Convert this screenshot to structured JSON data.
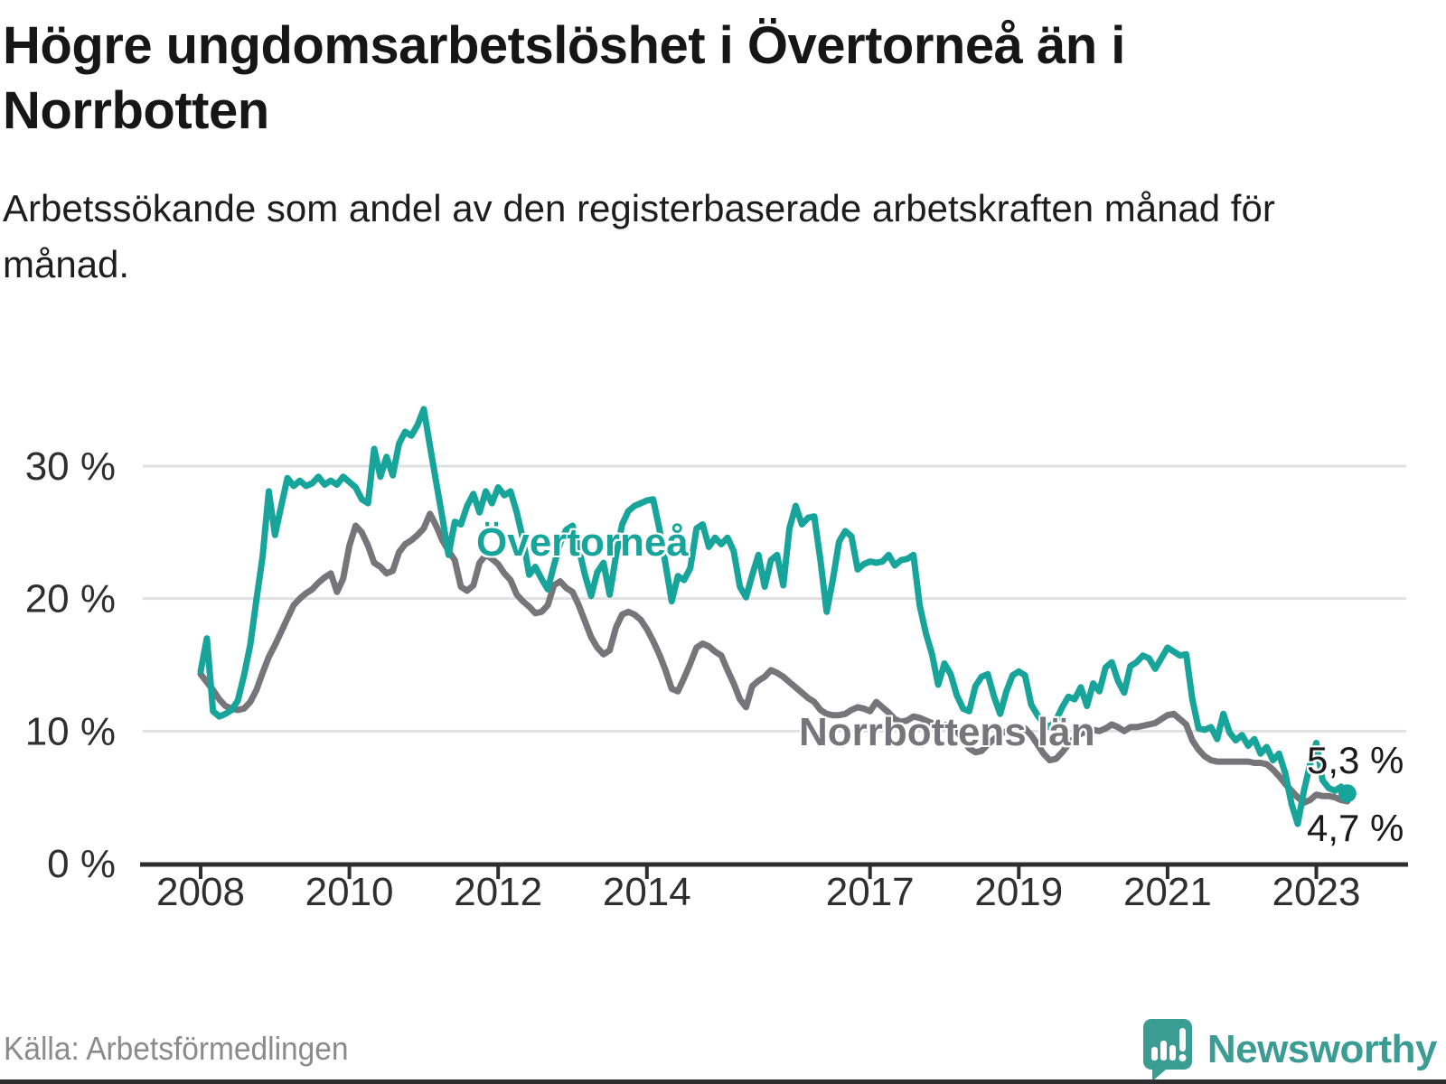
{
  "title": "Högre ungdomsarbetslöshet i Övertorneå än i Norrbotten",
  "subtitle": "Arbetssökande som andel av den registerbaserade arbetskraften månad för månad.",
  "source": "Källa: Arbetsförmedlingen",
  "logo_text": "Newsworthy",
  "colors": {
    "overtornea": "#17a49a",
    "norrbotten": "#76757a",
    "grid": "#e1e1e1",
    "axis": "#2e2e2e",
    "logo": "#3b9c94"
  },
  "chart_data": {
    "type": "line",
    "title": "",
    "xlabel": "",
    "ylabel": "",
    "x_start": "2008-01",
    "x_end": "2023-06",
    "x_step": "1 month",
    "ylim": [
      0,
      35
    ],
    "grid": "horizontal",
    "x_ticks": [
      2008,
      2010,
      2012,
      2014,
      2017,
      2019,
      2021,
      2023
    ],
    "y_ticks": [
      0,
      10,
      20,
      30
    ],
    "y_tick_labels": [
      "0 %",
      "10 %",
      "20 %",
      "30 %"
    ],
    "series": [
      {
        "name": "Övertorneå",
        "color": "#17a49a",
        "end_label": "5,3 %",
        "end_value": 5.3,
        "values": [
          14.5,
          17.0,
          11.5,
          11.1,
          11.3,
          11.6,
          12.3,
          14.2,
          16.5,
          19.9,
          23.2,
          28.1,
          24.8,
          27.0,
          29.1,
          28.5,
          28.9,
          28.5,
          28.7,
          29.2,
          28.6,
          28.9,
          28.6,
          29.2,
          28.8,
          28.4,
          27.5,
          27.2,
          31.3,
          29.2,
          30.7,
          29.3,
          31.7,
          32.6,
          32.3,
          33.1,
          34.3,
          31.5,
          28.8,
          26.1,
          23.3,
          25.8,
          25.6,
          27.0,
          27.9,
          26.5,
          28.1,
          27.2,
          28.4,
          27.8,
          28.1,
          26.5,
          24.5,
          21.8,
          22.4,
          21.5,
          20.7,
          22.5,
          24.2,
          25.2,
          25.5,
          23.8,
          21.8,
          20.2,
          22.0,
          22.7,
          20.3,
          23.2,
          25.6,
          26.6,
          27.0,
          27.2,
          27.4,
          27.5,
          25.3,
          22.6,
          19.8,
          21.7,
          21.4,
          22.3,
          25.3,
          25.6,
          23.9,
          24.6,
          24.1,
          24.6,
          23.6,
          20.9,
          20.1,
          21.8,
          23.3,
          20.9,
          22.9,
          23.3,
          21.0,
          25.3,
          27.0,
          25.6,
          26.1,
          26.2,
          22.9,
          19.0,
          21.4,
          24.3,
          25.1,
          24.7,
          22.2,
          22.6,
          22.8,
          22.7,
          22.8,
          23.3,
          22.5,
          22.9,
          23.0,
          23.3,
          19.5,
          17.4,
          15.8,
          13.5,
          15.1,
          14.3,
          12.7,
          11.7,
          11.5,
          13.4,
          14.1,
          14.3,
          12.6,
          11.3,
          13.0,
          14.2,
          14.5,
          14.2,
          12.0,
          11.2,
          10.6,
          10.3,
          10.8,
          11.8,
          12.6,
          12.4,
          13.3,
          11.9,
          13.6,
          13.0,
          14.8,
          15.2,
          13.8,
          12.9,
          14.9,
          15.2,
          15.7,
          15.5,
          14.7,
          15.5,
          16.3,
          16.0,
          15.7,
          15.8,
          12.4,
          10.2,
          10.1,
          10.3,
          9.4,
          11.3,
          9.9,
          9.3,
          9.7,
          8.9,
          9.4,
          8.3,
          8.8,
          7.8,
          8.3,
          6.8,
          4.5,
          3.0,
          5.5,
          7.5,
          9.1,
          6.3,
          5.7,
          5.5,
          5.8,
          5.3
        ]
      },
      {
        "name": "Norrbottens län",
        "color": "#76757a",
        "end_label": "4,7 %",
        "end_value": 4.7,
        "values": [
          14.3,
          13.7,
          13.1,
          12.4,
          11.9,
          11.7,
          11.6,
          11.7,
          12.2,
          13.1,
          14.4,
          15.6,
          16.5,
          17.5,
          18.5,
          19.5,
          20.0,
          20.4,
          20.7,
          21.2,
          21.6,
          21.9,
          20.5,
          21.5,
          24.0,
          25.5,
          25.0,
          24.0,
          22.7,
          22.4,
          21.9,
          22.1,
          23.5,
          24.1,
          24.4,
          24.8,
          25.3,
          26.4,
          25.5,
          24.4,
          23.6,
          22.9,
          20.9,
          20.6,
          21.0,
          22.7,
          23.3,
          23.0,
          22.6,
          21.9,
          21.4,
          20.3,
          19.8,
          19.4,
          18.9,
          19.0,
          19.5,
          21.0,
          21.3,
          20.8,
          20.5,
          19.5,
          18.3,
          17.1,
          16.3,
          15.8,
          16.1,
          17.8,
          18.8,
          19.0,
          18.8,
          18.4,
          17.7,
          16.8,
          15.8,
          14.6,
          13.2,
          13.0,
          14.0,
          15.1,
          16.3,
          16.6,
          16.4,
          16.0,
          15.7,
          14.6,
          13.6,
          12.4,
          11.8,
          13.4,
          13.8,
          14.1,
          14.6,
          14.4,
          14.1,
          13.7,
          13.3,
          12.9,
          12.5,
          12.2,
          11.6,
          11.3,
          11.2,
          11.2,
          11.3,
          11.6,
          11.8,
          11.7,
          11.5,
          12.2,
          11.8,
          11.4,
          10.9,
          10.7,
          10.8,
          11.1,
          11.0,
          10.8,
          10.6,
          10.4,
          10.4,
          10.6,
          10.0,
          9.4,
          8.7,
          8.4,
          8.5,
          9.0,
          9.4,
          9.8,
          10.0,
          10.2,
          10.3,
          10.2,
          9.7,
          9.0,
          8.3,
          7.8,
          7.9,
          8.4,
          9.0,
          9.5,
          9.8,
          10.0,
          10.1,
          10.0,
          10.2,
          10.5,
          10.3,
          10.0,
          10.3,
          10.3,
          10.4,
          10.5,
          10.6,
          10.9,
          11.2,
          11.3,
          10.9,
          10.5,
          9.3,
          8.6,
          8.1,
          7.8,
          7.7,
          7.7,
          7.7,
          7.7,
          7.7,
          7.7,
          7.6,
          7.6,
          7.5,
          7.1,
          6.6,
          6.0,
          5.5,
          5.0,
          4.6,
          4.8,
          5.2,
          5.1,
          5.1,
          5.0,
          4.8,
          4.7
        ]
      }
    ],
    "legend_position": "inline-labels"
  }
}
